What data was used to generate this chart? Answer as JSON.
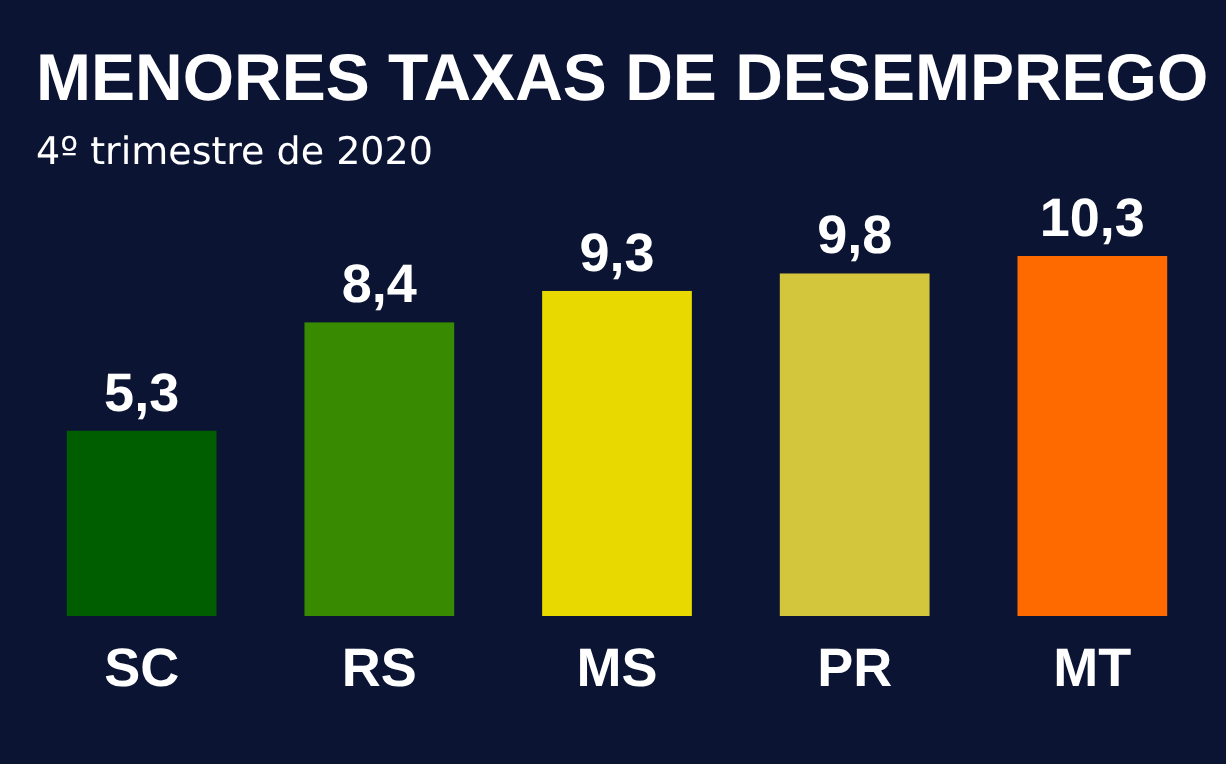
{
  "chart_data": {
    "type": "bar",
    "title": "MENORES TAXAS DE DESEMPREGO",
    "subtitle": "4º trimestre de 2020",
    "categories": [
      "SC",
      "RS",
      "MS",
      "PR",
      "MT"
    ],
    "values": [
      5.3,
      8.4,
      9.3,
      9.8,
      10.3
    ],
    "colors": [
      "#005e00",
      "#388a00",
      "#e8d900",
      "#d3c63c",
      "#ff6a00"
    ],
    "value_labels": [
      "5,3",
      "8,4",
      "9,3",
      "9,8",
      "10,3"
    ]
  }
}
